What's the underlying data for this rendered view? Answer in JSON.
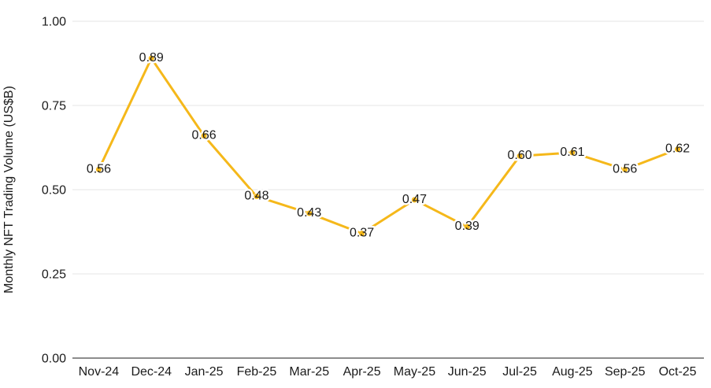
{
  "chart_data": {
    "type": "line",
    "title": "",
    "xlabel": "",
    "ylabel": "Monthly NFT Trading Volume (US$B)",
    "categories": [
      "Nov-24",
      "Dec-24",
      "Jan-25",
      "Feb-25",
      "Mar-25",
      "Apr-25",
      "May-25",
      "Jun-25",
      "Jul-25",
      "Aug-25",
      "Sep-25",
      "Oct-25"
    ],
    "series": [
      {
        "name": "Monthly NFT Trading Volume (US$B)",
        "values": [
          0.56,
          0.89,
          0.66,
          0.48,
          0.43,
          0.37,
          0.47,
          0.39,
          0.6,
          0.61,
          0.56,
          0.62
        ]
      }
    ],
    "data_labels": [
      "0.56",
      "0.89",
      "0.66",
      "0.48",
      "0.43",
      "0.37",
      "0.47",
      "0.39",
      "0.60",
      "0.61",
      "0.56",
      "0.62"
    ],
    "ylim": [
      0,
      1
    ],
    "yticks": [
      0,
      0.25,
      0.5,
      0.75,
      1
    ],
    "ytick_labels": [
      "0.00",
      "0.25",
      "0.50",
      "0.75",
      "1.00"
    ],
    "grid": true,
    "legend": false,
    "marker": true
  },
  "colors": {
    "line": "#F5B81A",
    "marker": "#F5B81A",
    "grid": "#E4E4E4",
    "axis_line": "#8C8C8C",
    "text": "#1B1B1B",
    "background": "#FFFFFF",
    "label_halo": "#FFFFFF"
  }
}
